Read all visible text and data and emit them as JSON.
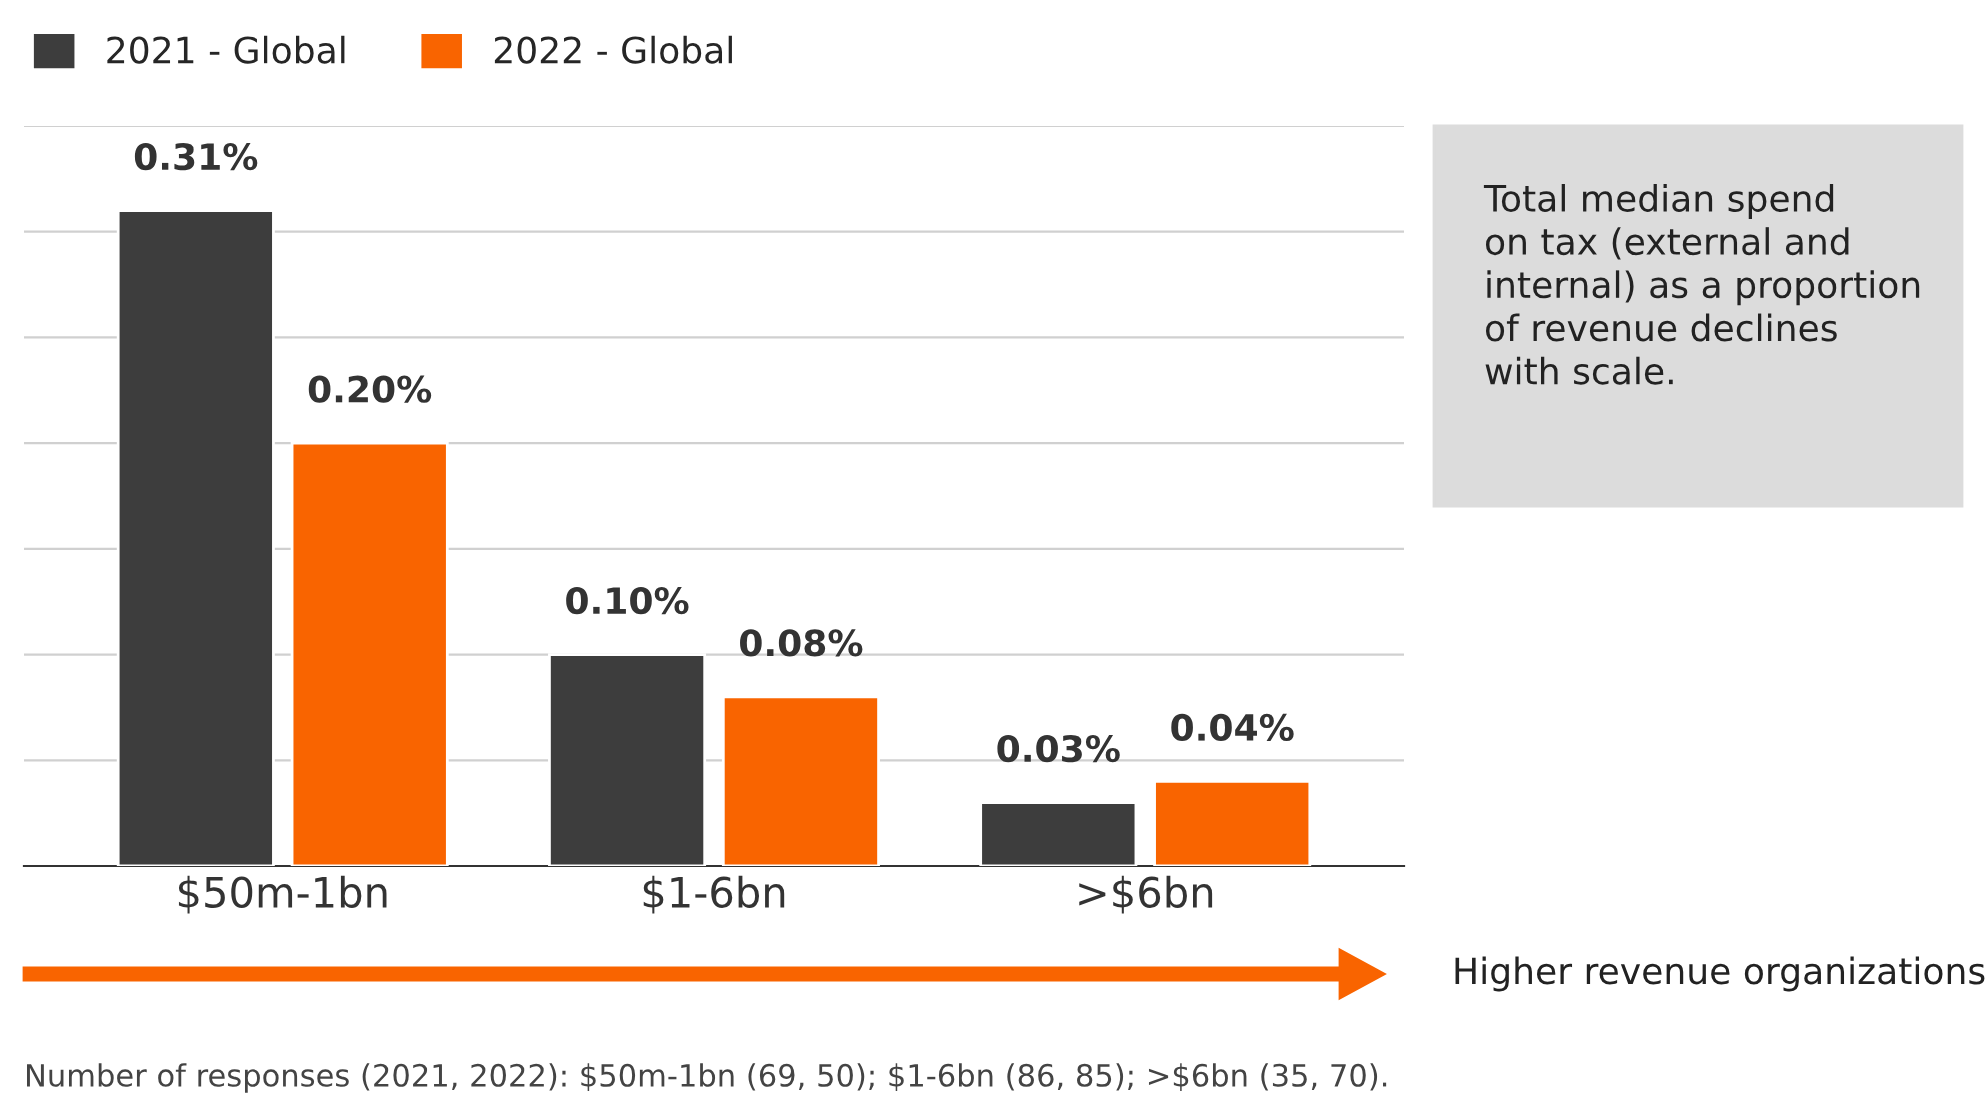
{
  "chart_data": {
    "type": "bar",
    "categories": [
      "$50m-1bn",
      "$1-6bn",
      ">$6bn"
    ],
    "series": [
      {
        "name": "2021 - Global",
        "color": "#3d3d3d",
        "values": [
          0.31,
          0.1,
          0.03
        ],
        "value_labels": [
          "0.31%",
          "0.10%",
          "0.03%"
        ]
      },
      {
        "name": "2022 - Global",
        "color": "#f96400",
        "values": [
          0.2,
          0.08,
          0.04
        ],
        "value_labels": [
          "0.20%",
          "0.08%",
          "0.04%"
        ]
      }
    ],
    "ylim": [
      0,
      0.35
    ],
    "yticks": [
      {
        "value": 0,
        "label": null
      },
      {
        "value": 0.05,
        "label": null
      },
      {
        "value": 0.1,
        "label": null
      },
      {
        "value": 0.15,
        "label": null
      },
      {
        "value": 0.2,
        "label": null
      },
      {
        "value": 0.25,
        "label": null
      },
      {
        "value": 0.3,
        "label": null
      },
      {
        "value": 0.35,
        "label": null
      }
    ],
    "tick_labels": "x",
    "grid": "y",
    "legend": "top left",
    "annotations": [
      "Total median spend\non tax (external and\ninternal) as a proportion\nof revenue declines\nwith scale.",
      "Higher revenue organizations",
      "Number of responses (2021, 2022): $50m-1bn (69, 50); $1-6bn (86, 85); >$6bn (35, 70)."
    ]
  }
}
